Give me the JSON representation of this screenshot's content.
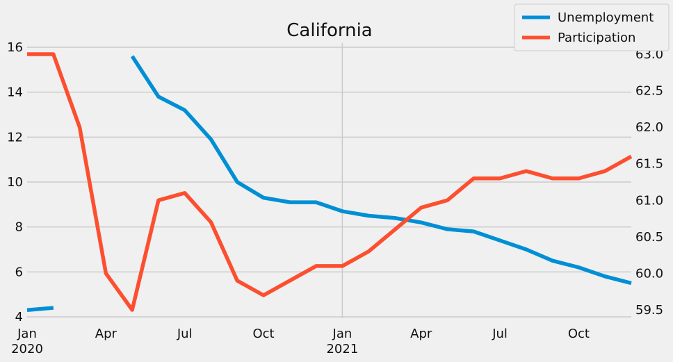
{
  "chart_data": {
    "type": "line",
    "title": "California",
    "x": [
      "2020-01",
      "2020-02",
      "2020-03",
      "2020-04",
      "2020-05",
      "2020-06",
      "2020-07",
      "2020-08",
      "2020-09",
      "2020-10",
      "2020-11",
      "2020-12",
      "2021-01",
      "2021-02",
      "2021-03",
      "2021-04",
      "2021-05",
      "2021-06",
      "2021-07",
      "2021-08",
      "2021-09",
      "2021-10",
      "2021-11",
      "2021-12"
    ],
    "x_ticks": [
      {
        "x": "2020-01",
        "label": "Jan",
        "sublabel": "2020"
      },
      {
        "x": "2020-04",
        "label": "Apr",
        "sublabel": ""
      },
      {
        "x": "2020-07",
        "label": "Jul",
        "sublabel": ""
      },
      {
        "x": "2020-10",
        "label": "Oct",
        "sublabel": ""
      },
      {
        "x": "2021-01",
        "label": "Jan",
        "sublabel": "2021"
      },
      {
        "x": "2021-04",
        "label": "Apr",
        "sublabel": ""
      },
      {
        "x": "2021-07",
        "label": "Jul",
        "sublabel": ""
      },
      {
        "x": "2021-10",
        "label": "Oct",
        "sublabel": ""
      }
    ],
    "series": [
      {
        "name": "Unemployment",
        "axis": "left",
        "color": "#008fd5",
        "values": [
          4.3,
          4.4,
          null,
          null,
          15.6,
          13.8,
          13.2,
          11.9,
          10.0,
          9.3,
          9.1,
          9.1,
          8.7,
          8.5,
          8.4,
          8.2,
          7.9,
          7.8,
          7.4,
          7.0,
          6.5,
          6.2,
          5.8,
          5.5
        ]
      },
      {
        "name": "Participation",
        "axis": "right",
        "color": "#fc4f30",
        "values": [
          63.0,
          63.0,
          62.0,
          60.0,
          59.5,
          61.0,
          61.1,
          60.7,
          59.9,
          59.7,
          59.9,
          60.1,
          60.1,
          60.3,
          60.6,
          60.9,
          61.0,
          61.3,
          61.3,
          61.4,
          61.3,
          61.3,
          61.4,
          61.6
        ]
      }
    ],
    "ylim_left": [
      4,
      16
    ],
    "yticks_left": [
      4,
      6,
      8,
      10,
      12,
      14,
      16
    ],
    "ylim_right": [
      59.5,
      63.0
    ],
    "yticks_right": [
      "59.5",
      "60.0",
      "60.5",
      "61.0",
      "61.5",
      "62.0",
      "62.5",
      "63.0"
    ],
    "grid": true,
    "legend_position": "top-right",
    "style": {
      "background": "#f0f0f0",
      "grid_color": "#cbcbcb"
    }
  }
}
